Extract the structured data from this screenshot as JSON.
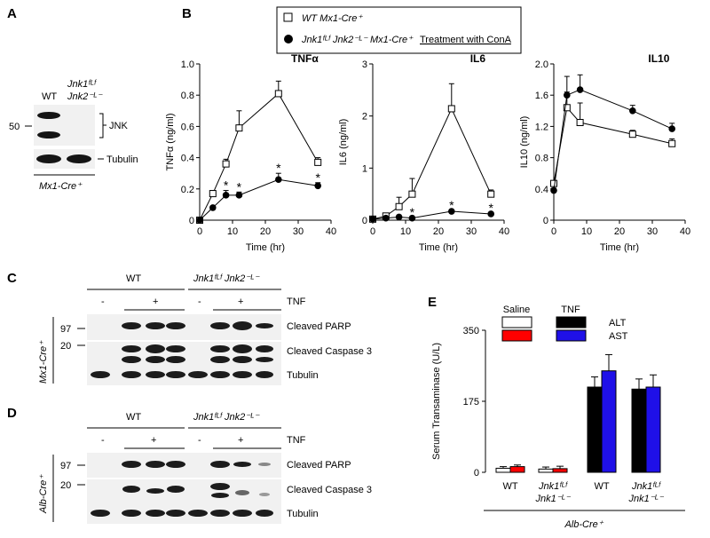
{
  "panel_labels": [
    "A",
    "B",
    "C",
    "D",
    "E"
  ],
  "legend_b": {
    "wt": "WT Mx1-Cre⁺",
    "ko": "Jnk1ᶠᴸᶠ Jnk2⁻ᴸ⁻ Mx1-Cre⁺",
    "treatment": "Treatment with ConA"
  },
  "panel_a": {
    "col_wt": "WT",
    "col_ko_1": "Jnk1ᶠᴸᶠ",
    "col_ko_2": "Jnk2⁻ᴸ⁻",
    "marker": "50",
    "band_jnk": "JNK",
    "band_tubulin": "Tubulin",
    "genotype": "Mx1-Cre⁺"
  },
  "panel_c": {
    "group_wt": "WT",
    "group_ko": "Jnk1ᶠᴸᶠ Jnk2⁻ᴸ⁻",
    "minus": "-",
    "plus": "+",
    "treatment": "TNF",
    "marker_97": "97",
    "marker_20": "20",
    "band_parp": "Cleaved PARP",
    "band_casp": "Cleaved Caspase 3",
    "band_tub": "Tubulin",
    "side": "Mx1-Cre⁺"
  },
  "panel_d": {
    "group_wt": "WT",
    "group_ko": "Jnk1ᶠᴸᶠ Jnk2⁻ᴸ⁻",
    "minus": "-",
    "plus": "+",
    "treatment": "TNF",
    "marker_97": "97",
    "marker_20": "20",
    "band_parp": "Cleaved PARP",
    "band_casp": "Cleaved Caspase 3",
    "band_tub": "Tubulin",
    "side": "Alb-Cre⁺"
  },
  "chart_data": [
    {
      "type": "line",
      "title": "TNFα",
      "xlabel": "Time (hr)",
      "ylabel": "TNFα (ng/ml)",
      "xlim": [
        0,
        40
      ],
      "ylim": [
        0,
        1.0
      ],
      "xticks": [
        0,
        10,
        20,
        30,
        40
      ],
      "yticks": [
        0,
        0.2,
        0.4,
        0.6,
        0.8,
        1.0
      ],
      "ytick_labels": [
        "0",
        "0.2",
        "0.4",
        "0.6",
        "0.8",
        "1.0"
      ],
      "x": [
        0,
        4,
        8,
        12,
        24,
        36
      ],
      "series": [
        {
          "key": "wt",
          "values": [
            0,
            0.17,
            0.36,
            0.59,
            0.81,
            0.37
          ],
          "err": [
            0,
            0.02,
            0.03,
            0.11,
            0.08,
            0.03
          ]
        },
        {
          "key": "ko",
          "values": [
            0,
            0.08,
            0.16,
            0.16,
            0.26,
            0.22
          ],
          "err": [
            0,
            0.01,
            0.03,
            0.02,
            0.04,
            0.02
          ]
        }
      ],
      "star_x": [
        8,
        12,
        24,
        36
      ],
      "star_label": "*"
    },
    {
      "type": "line",
      "title": "IL6",
      "xlabel": "Time (hr)",
      "ylabel": "IL6 (ng/ml)",
      "xlim": [
        0,
        40
      ],
      "ylim": [
        0,
        3
      ],
      "xticks": [
        0,
        10,
        20,
        30,
        40
      ],
      "yticks": [
        0,
        1,
        2,
        3
      ],
      "ytick_labels": [
        "0",
        "1",
        "2",
        "3"
      ],
      "x": [
        0,
        4,
        8,
        12,
        24,
        36
      ],
      "series": [
        {
          "key": "wt",
          "values": [
            0.02,
            0.08,
            0.26,
            0.5,
            2.14,
            0.5
          ],
          "err": [
            0,
            0.02,
            0.18,
            0.3,
            0.48,
            0.08
          ]
        },
        {
          "key": "ko",
          "values": [
            0.02,
            0.04,
            0.06,
            0.04,
            0.17,
            0.12
          ],
          "err": [
            0,
            0.01,
            0.01,
            0.01,
            0.02,
            0.02
          ]
        }
      ],
      "star_x": [
        12,
        24,
        36
      ],
      "star_label": "*"
    },
    {
      "type": "line",
      "title": "IL10",
      "xlabel": "Time (hr)",
      "ylabel": "IL10 (ng/ml)",
      "xlim": [
        0,
        40
      ],
      "ylim": [
        0,
        2.0
      ],
      "xticks": [
        0,
        10,
        20,
        30,
        40
      ],
      "yticks": [
        0,
        0.4,
        0.8,
        1.2,
        1.6,
        2.0
      ],
      "ytick_labels": [
        "0",
        "0.4",
        "0.8",
        "1.2",
        "1.6",
        "2.0"
      ],
      "x": [
        0,
        4,
        8,
        24,
        36
      ],
      "series": [
        {
          "key": "wt",
          "values": [
            0.47,
            1.44,
            1.25,
            1.1,
            0.98
          ],
          "err": [
            0.03,
            0.2,
            0.25,
            0.05,
            0.06
          ]
        },
        {
          "key": "ko",
          "values": [
            0.38,
            1.6,
            1.67,
            1.4,
            1.17
          ],
          "err": [
            0.03,
            0.24,
            0.19,
            0.07,
            0.07
          ]
        }
      ],
      "star_x": [],
      "star_label": "*"
    },
    {
      "type": "bar",
      "ylabel": "Serum Transaminase (U/L)",
      "ylim": [
        0,
        350
      ],
      "yticks": [
        0,
        175,
        350
      ],
      "legend_group_saline": "Saline",
      "legend_group_tnf": "TNF",
      "categories": [
        {
          "line1": "WT",
          "line2": "",
          "treatment": "saline"
        },
        {
          "line1": "Jnk1ᶠᴸᶠ",
          "line2": "Jnk1⁻ᴸ⁻",
          "treatment": "saline"
        },
        {
          "line1": "WT",
          "line2": "",
          "treatment": "tnf"
        },
        {
          "line1": "Jnk1ᶠᴸᶠ",
          "line2": "Jnk1⁻ᴸ⁻",
          "treatment": "tnf"
        }
      ],
      "series": [
        {
          "name": "ALT",
          "values": [
            10,
            8,
            210,
            205
          ],
          "err": [
            4,
            5,
            25,
            25
          ]
        },
        {
          "name": "AST",
          "values": [
            14,
            9,
            250,
            210
          ],
          "err": [
            4,
            6,
            40,
            30
          ]
        }
      ],
      "colors": {
        "saline": [
          "#ffffff",
          "#ff0000"
        ],
        "tnf": [
          "#000000",
          "#1f10e8"
        ]
      },
      "xgroup_label": "Alb-Cre⁺"
    }
  ]
}
